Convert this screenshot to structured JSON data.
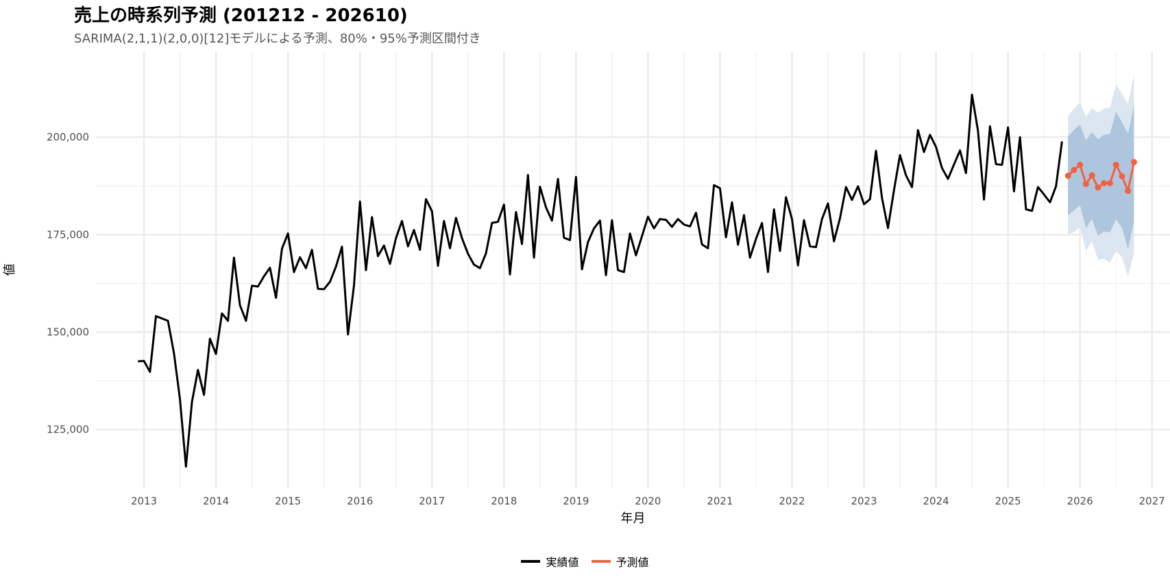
{
  "chart_data": {
    "type": "line",
    "title": "売上の時系列予測 (201212 - 202610)",
    "subtitle": "SARIMA(2,1,1)(2,0,0)[12]モデルによる予測、80%・95%予測区間付き",
    "xlabel": "年月",
    "ylabel": "値",
    "xlim": [
      "2012-05",
      "2027-04"
    ],
    "ylim": [
      110000,
      222000
    ],
    "x_ticks": [
      "2013",
      "2014",
      "2015",
      "2016",
      "2017",
      "2018",
      "2019",
      "2020",
      "2021",
      "2022",
      "2023",
      "2024",
      "2025",
      "2026",
      "2027"
    ],
    "y_ticks": [
      125000,
      150000,
      175000,
      200000
    ],
    "y_tick_labels": [
      "125,000",
      "150,000",
      "175,000",
      "200,000"
    ],
    "grid": true,
    "legend_position": "bottom",
    "series": [
      {
        "name": "実績値",
        "color": "#000000",
        "start": "2012-12",
        "values": [
          142500,
          142600,
          139800,
          154100,
          153500,
          152900,
          144600,
          132800,
          115500,
          132100,
          140300,
          133900,
          148300,
          144400,
          154800,
          152900,
          169100,
          156900,
          152900,
          161900,
          161700,
          164300,
          166500,
          158800,
          171400,
          175300,
          165400,
          169200,
          166400,
          171100,
          161100,
          161000,
          162900,
          166800,
          171900,
          149400,
          161900,
          183500,
          165900,
          179500,
          169500,
          172200,
          167500,
          174100,
          178500,
          172000,
          176200,
          171100,
          184100,
          181000,
          167000,
          178500,
          171500,
          179300,
          174100,
          170100,
          167300,
          166400,
          170200,
          178000,
          178300,
          182700,
          164800,
          180800,
          172600,
          190300,
          169100,
          187300,
          182000,
          178600,
          189300,
          174200,
          173600,
          189800,
          166100,
          173100,
          176600,
          178600,
          164600,
          178700,
          165900,
          165400,
          175300,
          169700,
          174600,
          179600,
          176600,
          179000,
          178800,
          177000,
          179000,
          177600,
          177100,
          180600,
          172500,
          171500,
          187700,
          186900,
          174300,
          183300,
          172400,
          180000,
          169100,
          173900,
          178000,
          165400,
          181500,
          170800,
          184600,
          179000,
          167100,
          178700,
          172000,
          171800,
          179000,
          183000,
          173300,
          179200,
          187200,
          183900,
          187400,
          182800,
          184100,
          196500,
          184400,
          176700,
          186400,
          195400,
          190200,
          187200,
          201800,
          196200,
          200600,
          197500,
          192100,
          189300,
          193000,
          196600,
          190800,
          210900,
          201600,
          184000,
          202800,
          193100,
          192900,
          202500,
          186100,
          200000,
          181500,
          181100,
          187200,
          185300,
          183300,
          187400,
          198900
        ]
      },
      {
        "name": "予測値",
        "color": "#f26140",
        "x": [
          "2025-11",
          "2025-12",
          "2026-01",
          "2026-02",
          "2026-03",
          "2026-04",
          "2026-05",
          "2026-06",
          "2026-07",
          "2026-08",
          "2026-09",
          "2026-10"
        ],
        "values": [
          190100,
          191600,
          192900,
          188000,
          190200,
          187100,
          188200,
          188200,
          192900,
          190000,
          186200,
          193600
        ],
        "pi80_lower": [
          180000,
          181200,
          182500,
          176700,
          179000,
          174800,
          175800,
          175600,
          178900,
          176700,
          171300,
          178400
        ],
        "pi80_upper": [
          200100,
          201900,
          203200,
          199200,
          201300,
          199500,
          200600,
          200900,
          206600,
          203800,
          200900,
          208200
        ],
        "pi95_lower": [
          175100,
          175700,
          177000,
          170900,
          173200,
          168500,
          168800,
          167800,
          170800,
          169200,
          164200,
          170400
        ],
        "pi95_upper": [
          205200,
          207300,
          208900,
          205200,
          207400,
          206300,
          207300,
          207600,
          213500,
          211200,
          208500,
          216100
        ]
      }
    ],
    "band_colors": {
      "pi95": "#dce6f0",
      "pi80": "#aec5de"
    },
    "grid_color": "#ebebeb"
  }
}
